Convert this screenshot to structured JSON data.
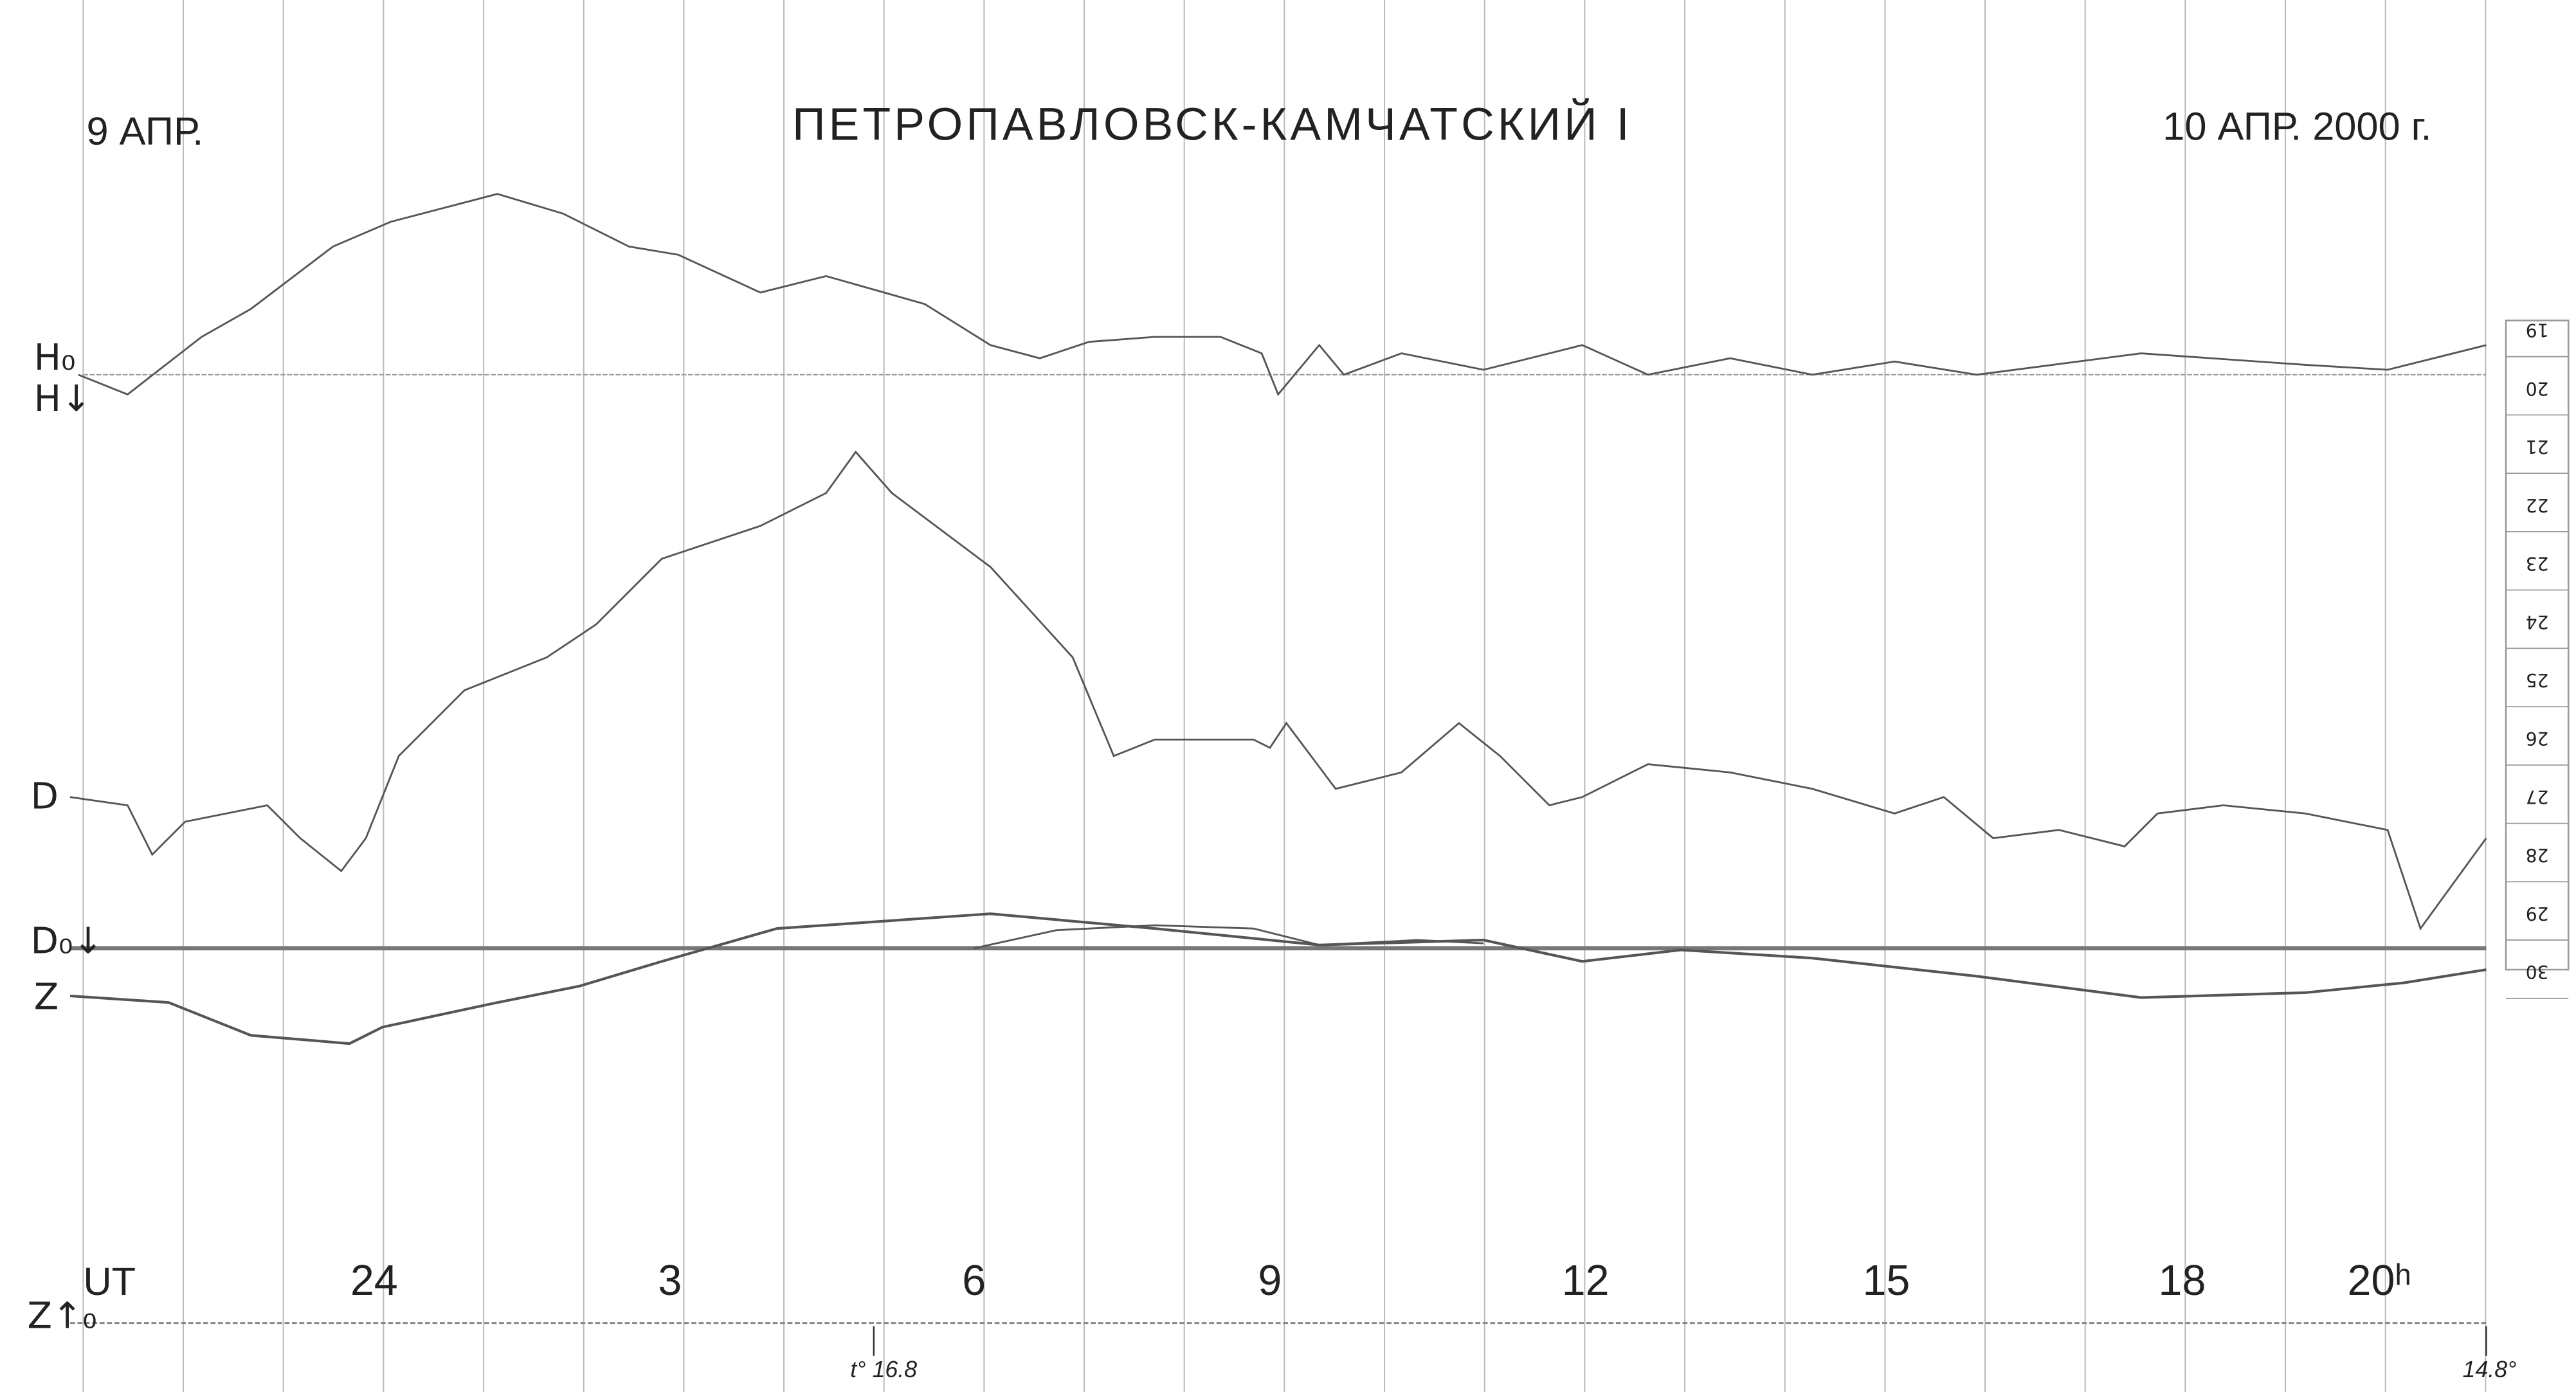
{
  "header": {
    "left_date": "9 АПР.",
    "title": "ПЕТРОПАВЛОВСК-КАМЧАТСКИЙ I",
    "right_date": "10 АПР. 2000 г."
  },
  "trace_labels": {
    "h0": "H₀",
    "h": "H↓",
    "d": "D",
    "d0": "D₀↓",
    "z": "Z",
    "z0": "Z↑₀"
  },
  "time_axis": {
    "unit": "UT",
    "hours": [
      "24",
      "3",
      "6",
      "9",
      "12",
      "15",
      "18",
      "20ʰ"
    ]
  },
  "temperatures": {
    "start": "t° 16.8",
    "end": "14.8°"
  },
  "scale": [
    "19",
    "20",
    "21",
    "22",
    "23",
    "24",
    "25",
    "26",
    "27",
    "28",
    "29",
    "30"
  ]
}
